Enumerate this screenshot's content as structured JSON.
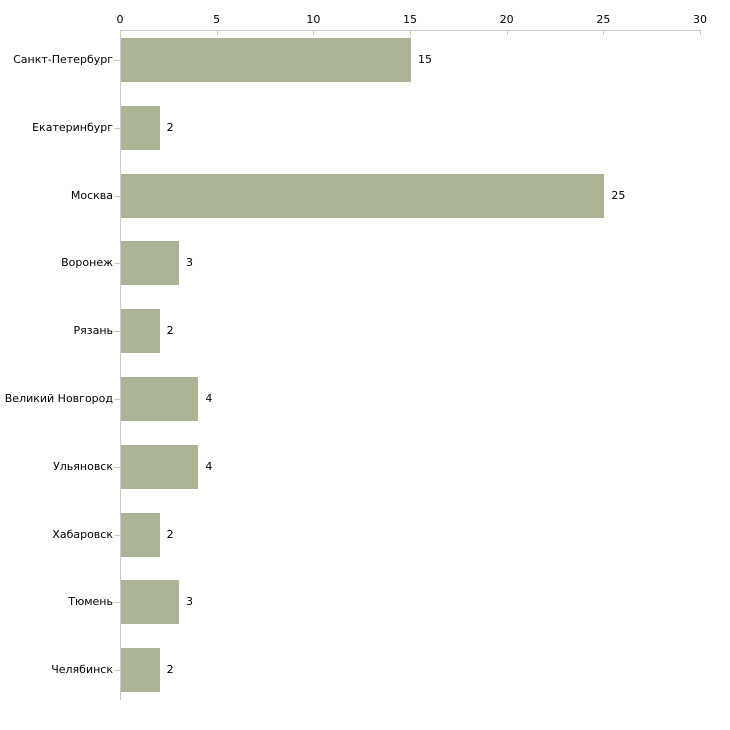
{
  "chart_data": {
    "type": "bar",
    "orientation": "horizontal",
    "title": "",
    "xlabel": "",
    "ylabel": "",
    "categories": [
      "Санкт-Петербург",
      "Екатеринбург",
      "Москва",
      "Воронеж",
      "Рязань",
      "Великий Новгород",
      "Ульяновск",
      "Хабаровск",
      "Тюмень",
      "Челябинск"
    ],
    "values": [
      15,
      2,
      25,
      3,
      2,
      4,
      4,
      2,
      3,
      2
    ],
    "xlim": [
      0,
      30
    ],
    "xticks": [
      0,
      5,
      10,
      15,
      20,
      25,
      30
    ],
    "grid": false,
    "legend": "none",
    "axis_position": "top",
    "colors": {
      "bar_fill": "#acb497",
      "axis_line": "#c9c9c9",
      "tick_mark": "#cdd0a2",
      "label_text": "#000000",
      "background": "#ffffff"
    }
  }
}
